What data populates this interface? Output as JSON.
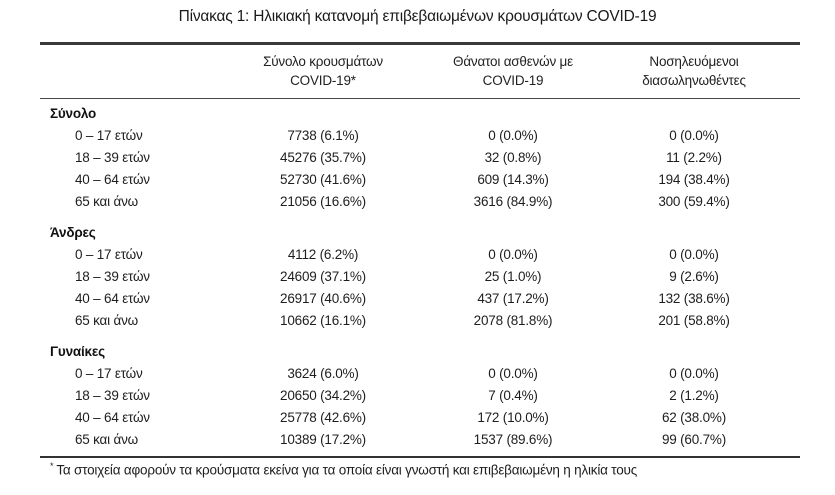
{
  "page": {
    "title": "Πίνακας 1: Ηλικιακή κατανομή επιβεβαιωμένων κρουσμάτων COVID-19"
  },
  "colors": {
    "text": "#1e1e1e",
    "rule": "#3a3a3a",
    "background": "#ffffff"
  },
  "table": {
    "header": {
      "cases_line1": "Σύνολο κρουσμάτων",
      "cases_line2": "COVID-19*",
      "deaths_line1": "Θάνατοι ασθενών με",
      "deaths_line2": "COVID-19",
      "intubated_line1": "Νοσηλευόμενοι",
      "intubated_line2": "διασωληνωθέντες"
    },
    "sections": [
      {
        "label": "Σύνολο",
        "rows": [
          {
            "age": "0 – 17 ετών",
            "cases": "7738 (6.1%)",
            "deaths": "0 (0.0%)",
            "intubated": "0 (0.0%)"
          },
          {
            "age": "18 – 39 ετών",
            "cases": "45276 (35.7%)",
            "deaths": "32 (0.8%)",
            "intubated": "11 (2.2%)"
          },
          {
            "age": "40 – 64 ετών",
            "cases": "52730 (41.6%)",
            "deaths": "609 (14.3%)",
            "intubated": "194 (38.4%)"
          },
          {
            "age": "65 και άνω",
            "cases": "21056 (16.6%)",
            "deaths": "3616 (84.9%)",
            "intubated": "300 (59.4%)"
          }
        ]
      },
      {
        "label": "Άνδρες",
        "rows": [
          {
            "age": "0 – 17 ετών",
            "cases": "4112 (6.2%)",
            "deaths": "0 (0.0%)",
            "intubated": "0 (0.0%)"
          },
          {
            "age": "18 – 39 ετών",
            "cases": "24609 (37.1%)",
            "deaths": "25 (1.0%)",
            "intubated": "9 (2.6%)"
          },
          {
            "age": "40 – 64 ετών",
            "cases": "26917 (40.6%)",
            "deaths": "437 (17.2%)",
            "intubated": "132 (38.6%)"
          },
          {
            "age": "65 και άνω",
            "cases": "10662 (16.1%)",
            "deaths": "2078 (81.8%)",
            "intubated": "201 (58.8%)"
          }
        ]
      },
      {
        "label": "Γυναίκες",
        "rows": [
          {
            "age": "0 – 17 ετών",
            "cases": "3624 (6.0%)",
            "deaths": "0 (0.0%)",
            "intubated": "0 (0.0%)"
          },
          {
            "age": "18 – 39 ετών",
            "cases": "20650 (34.2%)",
            "deaths": "7 (0.4%)",
            "intubated": "2 (1.2%)"
          },
          {
            "age": "40 – 64 ετών",
            "cases": "25778 (42.6%)",
            "deaths": "172 (10.0%)",
            "intubated": "62 (38.0%)"
          },
          {
            "age": "65 και άνω",
            "cases": "10389 (17.2%)",
            "deaths": "1537 (89.6%)",
            "intubated": "99 (60.7%)"
          }
        ]
      }
    ],
    "footnote": {
      "marker": "*",
      "text": "Τα στοιχεία αφορούν τα κρούσματα εκείνα για τα οποία είναι γνωστή και επιβεβαιωμένη η ηλικία τους"
    }
  }
}
